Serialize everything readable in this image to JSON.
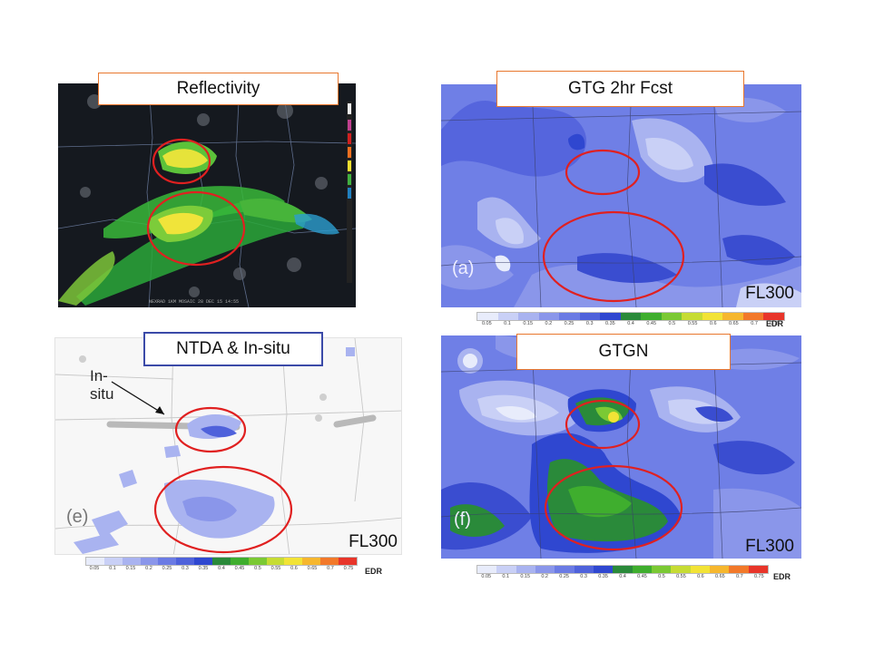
{
  "panels": {
    "reflectivity": {
      "title": "Reflectivity",
      "caption": "NEXRAD 1KM MOSAIC 28 DEC 15 14:55"
    },
    "gtg_2hr": {
      "title": "GTG 2hr Fcst",
      "panel_letter": "(a)",
      "flight_level": "FL300"
    },
    "ntda_insitu": {
      "title": "NTDA & In-situ",
      "panel_letter": "(e)",
      "flight_level": "FL300",
      "annotation_line1": "In-",
      "annotation_line2": "situ"
    },
    "gtgn": {
      "title": "GTGN",
      "panel_letter": "(f)",
      "flight_level": "FL300"
    }
  },
  "colorbar": {
    "ticks": [
      "0.05",
      "0.1",
      "0.15",
      "0.2",
      "0.25",
      "0.3",
      "0.35",
      "0.4",
      "0.45",
      "0.5",
      "0.55",
      "0.6",
      "0.65",
      "0.7",
      "0.75"
    ],
    "colors": [
      "#e8ecfb",
      "#c9d0f6",
      "#a9b3f0",
      "#8a96ea",
      "#6b7be4",
      "#4f62db",
      "#2f47d0",
      "#2a8a3a",
      "#3fae2e",
      "#7bc934",
      "#c6dc34",
      "#f2e336",
      "#f6b72e",
      "#f2792a",
      "#e8352a"
    ],
    "unit": "EDR"
  },
  "colors": {
    "ellipse": "#e02020",
    "gtg_bg": "#6f7fe6",
    "orange_border": "#e8772e",
    "blue_border": "#3b4aa8"
  }
}
